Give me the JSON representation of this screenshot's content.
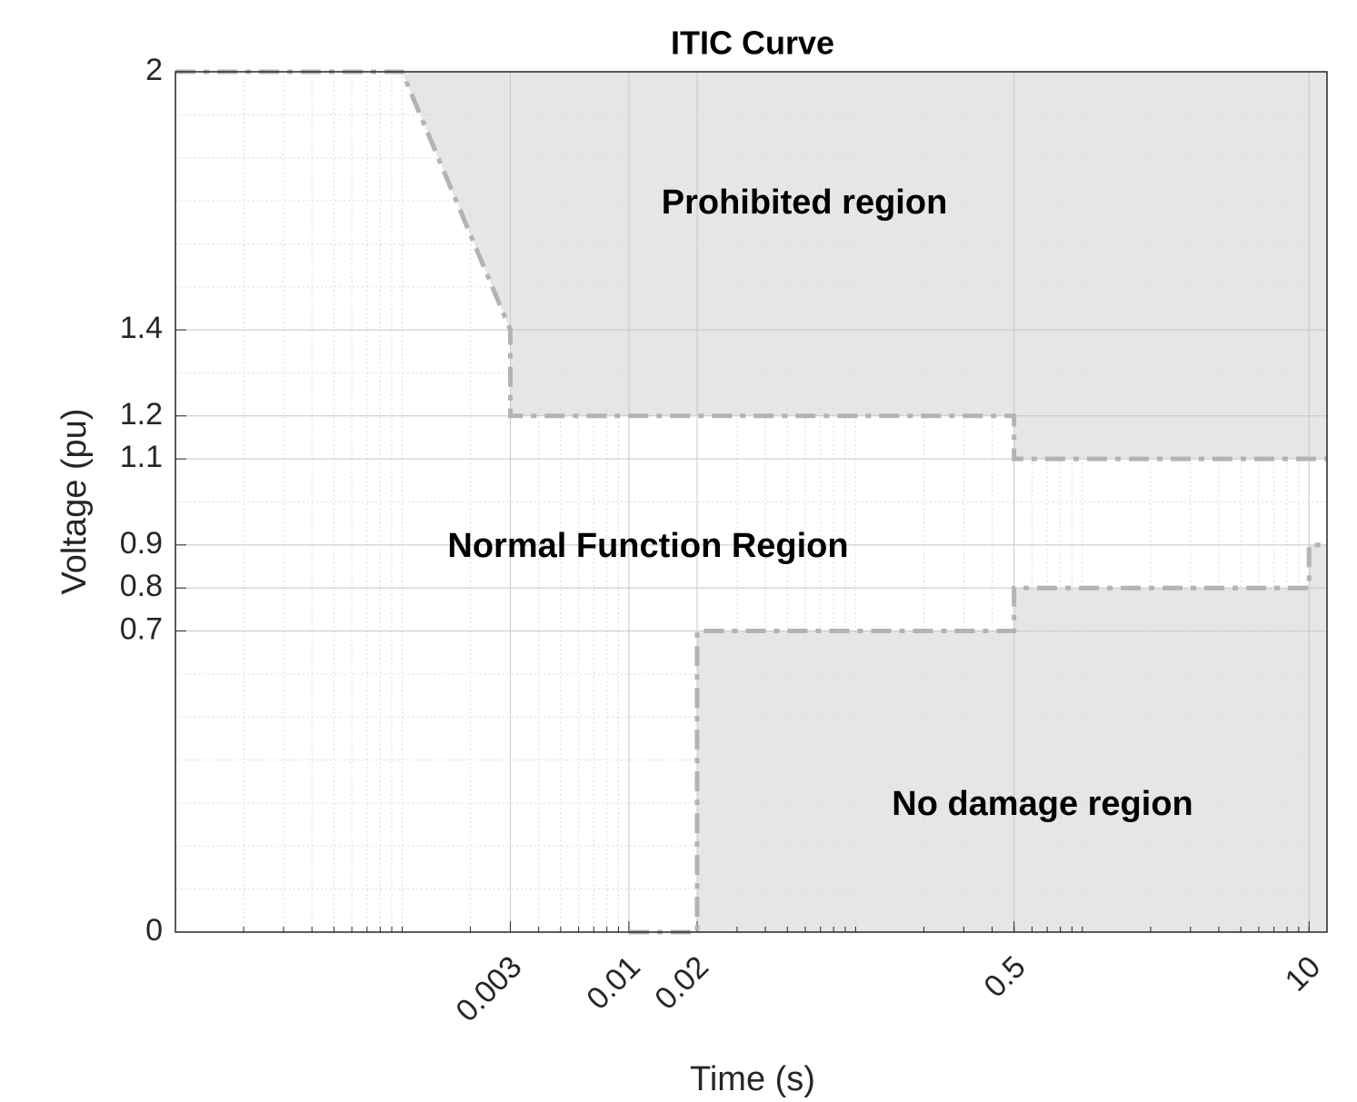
{
  "chart_data": {
    "type": "line",
    "title": "ITIC Curve",
    "x_label": "Time (s)",
    "y_label": "Voltage (pu)",
    "xscale": "log",
    "xlim": [
      0.0001,
      12
    ],
    "ylim": [
      0,
      2
    ],
    "xticks": [
      0.003,
      0.01,
      0.02,
      0.5,
      10
    ],
    "yticks": [
      0,
      0.7,
      0.8,
      0.9,
      1.1,
      1.2,
      1.4,
      2
    ],
    "grid": true,
    "minor_grid": true,
    "annotations": [
      "Prohibited region",
      "Normal Function Region",
      "No damage region"
    ],
    "series": [
      {
        "color": "#b3b3b3",
        "fill": "above",
        "fill_color": "#e6e6e6",
        "x": [
          0.0001,
          0.001,
          0.003,
          0.003,
          0.5,
          0.5,
          12
        ],
        "values": [
          2,
          2,
          1.4,
          1.2,
          1.2,
          1.1,
          1.1
        ]
      },
      {
        "color": "#b3b3b3",
        "fill": "below",
        "fill_color": "#e6e6e6",
        "x": [
          0.01,
          0.02,
          0.02,
          0.5,
          0.5,
          10,
          10,
          12
        ],
        "values": [
          0,
          0,
          0.7,
          0.7,
          0.8,
          0.8,
          0.9,
          0.9
        ]
      }
    ]
  }
}
